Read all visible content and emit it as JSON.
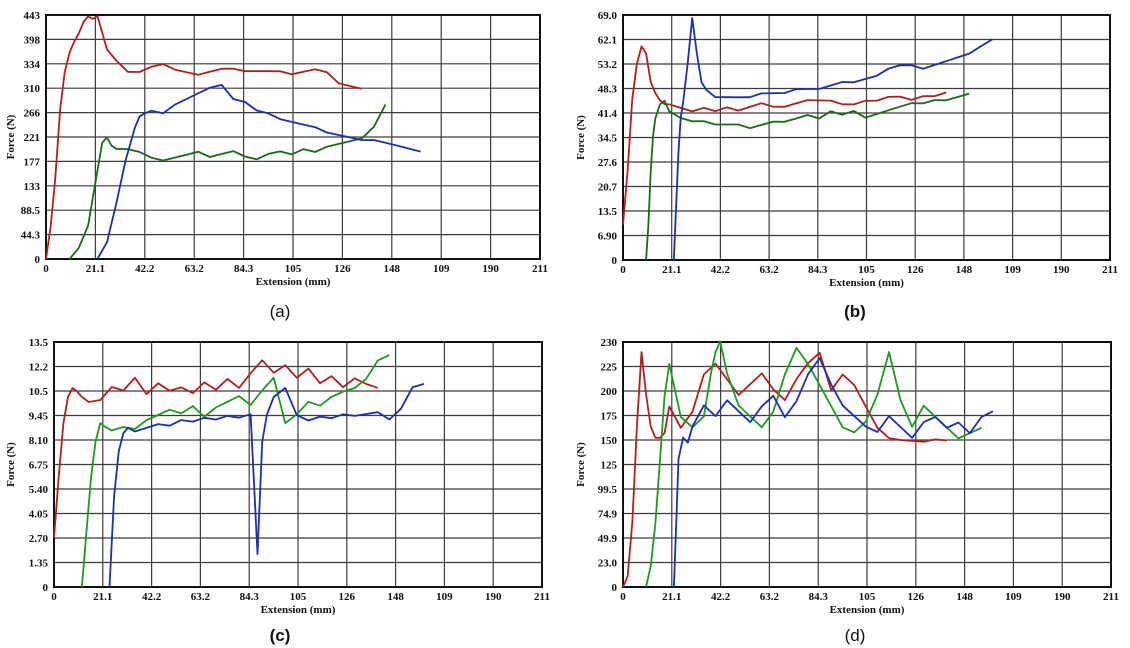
{
  "colors": {
    "red": "#b41e1e",
    "green": "#1a6a1a",
    "green_bright": "#1f9a1f",
    "blue": "#1c2fb0",
    "grid": "#3c3c3c"
  },
  "chart_data": [
    {
      "id": "a",
      "caption": "(a)",
      "caption_bold": false,
      "type": "line",
      "xlabel": "Extension (mm)",
      "ylabel": "Force (N)",
      "xticks": [
        "0",
        "21.1",
        "42.2",
        "63.2",
        "84.3",
        "105",
        "126",
        "148",
        "109",
        "190",
        "211"
      ],
      "yticks": [
        "0",
        "44.3",
        "88.5",
        "133",
        "177",
        "221",
        "266",
        "310",
        "334",
        "398",
        "443"
      ],
      "xlim": [
        0,
        211
      ],
      "ylim": [
        0,
        443
      ],
      "grid": true,
      "series": [
        {
          "color": "red",
          "x": [
            0,
            2,
            4,
            6,
            8,
            10,
            12,
            14,
            16,
            18,
            20,
            22,
            24,
            26,
            30,
            35,
            40,
            45,
            50,
            55,
            60,
            65,
            70,
            75,
            80,
            85,
            90,
            95,
            100,
            105,
            110,
            115,
            120,
            125,
            130,
            135
          ],
          "y": [
            0,
            60,
            150,
            270,
            340,
            375,
            395,
            410,
            430,
            440,
            435,
            440,
            410,
            380,
            360,
            340,
            340,
            350,
            355,
            345,
            340,
            335,
            340,
            345,
            345,
            340,
            340,
            340,
            340,
            335,
            340,
            345,
            340,
            320,
            315,
            310
          ]
        },
        {
          "color": "green",
          "x": [
            10,
            14,
            18,
            20,
            22,
            24,
            26,
            28,
            30,
            35,
            40,
            45,
            50,
            55,
            60,
            65,
            70,
            75,
            80,
            85,
            90,
            95,
            100,
            105,
            110,
            115,
            120,
            125,
            130,
            135,
            140,
            145
          ],
          "y": [
            0,
            20,
            60,
            110,
            160,
            210,
            220,
            205,
            200,
            200,
            195,
            185,
            180,
            185,
            190,
            195,
            185,
            190,
            195,
            185,
            180,
            190,
            195,
            190,
            200,
            195,
            205,
            210,
            215,
            220,
            240,
            280
          ]
        },
        {
          "color": "blue",
          "x": [
            22,
            26,
            30,
            34,
            38,
            40,
            42,
            45,
            50,
            55,
            60,
            65,
            70,
            75,
            78,
            80,
            85,
            90,
            95,
            100,
            105,
            110,
            115,
            120,
            125,
            130,
            135,
            140,
            145,
            150,
            155,
            160
          ],
          "y": [
            0,
            30,
            100,
            180,
            240,
            260,
            265,
            270,
            265,
            280,
            290,
            300,
            310,
            315,
            300,
            290,
            285,
            270,
            265,
            255,
            250,
            245,
            240,
            230,
            225,
            220,
            215,
            215,
            210,
            205,
            200,
            195
          ]
        }
      ]
    },
    {
      "id": "b",
      "caption": "(b)",
      "caption_bold": true,
      "type": "line",
      "xlabel": "Extension (mm)",
      "ylabel": "Force (N)",
      "xticks": [
        "0",
        "21.1",
        "42.2",
        "63.2",
        "84.3",
        "105",
        "126",
        "148",
        "109",
        "190",
        "211"
      ],
      "yticks": [
        "0",
        "6.90",
        "13.5",
        "20.7",
        "27.6",
        "34.5",
        "41.4",
        "48.3",
        "53.2",
        "62.1",
        "69.0"
      ],
      "xlim": [
        0,
        211
      ],
      "ylim": [
        0,
        69
      ],
      "grid": true,
      "series": [
        {
          "color": "red",
          "x": [
            0,
            2,
            4,
            6,
            8,
            10,
            12,
            14,
            16,
            18,
            20,
            25,
            30,
            35,
            40,
            45,
            50,
            55,
            60,
            65,
            70,
            75,
            80,
            85,
            90,
            95,
            100,
            105,
            110,
            115,
            120,
            125,
            130,
            135,
            140
          ],
          "y": [
            10,
            25,
            45,
            55,
            60,
            58,
            50,
            47,
            45,
            44,
            44,
            43,
            42,
            43,
            42,
            43,
            42,
            43,
            44,
            43,
            43,
            44,
            45,
            45,
            45,
            44,
            44,
            45,
            45,
            46,
            46,
            45,
            46,
            46,
            47
          ]
        },
        {
          "color": "green",
          "x": [
            10,
            11,
            12,
            13,
            14,
            16,
            18,
            20,
            25,
            30,
            35,
            40,
            45,
            50,
            55,
            60,
            65,
            70,
            75,
            80,
            85,
            90,
            95,
            100,
            105,
            110,
            115,
            120,
            125,
            130,
            135,
            140,
            145,
            150
          ],
          "y": [
            0,
            10,
            25,
            35,
            40,
            44,
            45,
            42,
            40,
            39,
            39,
            38,
            38,
            38,
            37,
            38,
            39,
            39,
            40,
            41,
            40,
            42,
            41,
            42,
            40,
            41,
            42,
            43,
            44,
            44,
            45,
            45,
            46,
            47
          ]
        },
        {
          "color": "blue",
          "x": [
            22,
            23,
            24,
            25,
            26,
            28,
            30,
            32,
            34,
            36,
            38,
            40,
            45,
            50,
            55,
            60,
            65,
            70,
            75,
            80,
            85,
            90,
            95,
            100,
            105,
            110,
            115,
            120,
            125,
            130,
            135,
            140,
            145,
            150,
            155,
            160
          ],
          "y": [
            0,
            15,
            30,
            40,
            44,
            55,
            68,
            58,
            50,
            48,
            47,
            46,
            46,
            46,
            46,
            47,
            47,
            47,
            48,
            48,
            48,
            49,
            50,
            50,
            51,
            52,
            54,
            55,
            55,
            54,
            55,
            56,
            57,
            58,
            60,
            62
          ]
        }
      ]
    },
    {
      "id": "c",
      "caption": "(c)",
      "caption_bold": true,
      "type": "line",
      "xlabel": "Extension (mm)",
      "ylabel": "Force (N)",
      "xticks": [
        "0",
        "21.1",
        "42.2",
        "63.2",
        "84.3",
        "105",
        "126",
        "148",
        "109",
        "190",
        "211"
      ],
      "yticks": [
        "0",
        "1.35",
        "2.70",
        "4.05",
        "5.40",
        "6.75",
        "8.10",
        "9.45",
        "10.5",
        "12.2",
        "13.5"
      ],
      "xlim": [
        0,
        211
      ],
      "ylim": [
        0,
        13.5
      ],
      "grid": true,
      "series": [
        {
          "color": "red",
          "x": [
            0,
            2,
            4,
            6,
            8,
            10,
            12,
            15,
            20,
            25,
            30,
            35,
            40,
            45,
            50,
            55,
            60,
            65,
            70,
            75,
            80,
            85,
            90,
            95,
            100,
            105,
            110,
            115,
            120,
            125,
            130,
            135,
            140
          ],
          "y": [
            2.7,
            6,
            9,
            10.5,
            11,
            10.8,
            10.5,
            10.2,
            10.3,
            11,
            10.8,
            11.5,
            10.6,
            11.2,
            10.8,
            11,
            10.7,
            11.3,
            10.9,
            11.5,
            11,
            11.8,
            12.5,
            11.8,
            12.2,
            11.5,
            12,
            11.2,
            11.6,
            11,
            11.5,
            11.2,
            11
          ]
        },
        {
          "color": "green",
          "x": [
            12,
            14,
            16,
            18,
            20,
            22,
            25,
            30,
            35,
            40,
            45,
            50,
            55,
            60,
            65,
            70,
            75,
            80,
            85,
            90,
            95,
            100,
            105,
            110,
            115,
            120,
            125,
            130,
            135,
            140,
            145
          ],
          "y": [
            0,
            3,
            6,
            8,
            9,
            8.8,
            8.6,
            8.8,
            8.7,
            9.2,
            9.5,
            9.8,
            9.6,
            10,
            9.4,
            9.9,
            10.2,
            10.5,
            10,
            10.8,
            11.5,
            9,
            9.5,
            10.2,
            10,
            10.5,
            10.8,
            11,
            11.5,
            12.5,
            12.8
          ]
        },
        {
          "color": "blue",
          "x": [
            24,
            26,
            28,
            30,
            32,
            35,
            40,
            45,
            50,
            55,
            60,
            65,
            70,
            75,
            80,
            85,
            88,
            90,
            92,
            95,
            100,
            105,
            110,
            115,
            120,
            125,
            130,
            135,
            140,
            145,
            150,
            155,
            160
          ],
          "y": [
            0,
            5,
            7.5,
            8.5,
            8.8,
            8.6,
            8.8,
            9,
            8.9,
            9.2,
            9.1,
            9.3,
            9.2,
            9.4,
            9.3,
            9.5,
            1.8,
            8,
            9.5,
            10.5,
            11,
            9.5,
            9.2,
            9.4,
            9.3,
            9.5,
            9.4,
            9.5,
            9.6,
            9.2,
            9.8,
            11,
            11.2
          ]
        }
      ]
    },
    {
      "id": "d",
      "caption": "(d)",
      "caption_bold": false,
      "type": "line",
      "xlabel": "Extension (mm)",
      "ylabel": "Force (N)",
      "xticks": [
        "0",
        "21.1",
        "42.2",
        "63.2",
        "84.3",
        "105",
        "126",
        "148",
        "109",
        "190",
        "211"
      ],
      "yticks": [
        "0",
        "23.0",
        "49.9",
        "74.9",
        "99.5",
        "125",
        "150",
        "175",
        "200",
        "225",
        "230"
      ],
      "xlim": [
        0,
        211
      ],
      "ylim": [
        0,
        230
      ],
      "grid": true,
      "series": [
        {
          "color": "red",
          "x": [
            0,
            2,
            4,
            6,
            8,
            10,
            12,
            14,
            16,
            18,
            20,
            25,
            30,
            35,
            40,
            45,
            50,
            55,
            60,
            65,
            70,
            75,
            80,
            85,
            90,
            95,
            100,
            105,
            110,
            115,
            120,
            125,
            130,
            135,
            140
          ],
          "y": [
            0,
            10,
            60,
            150,
            220,
            180,
            150,
            140,
            140,
            145,
            170,
            150,
            165,
            200,
            210,
            195,
            180,
            190,
            200,
            185,
            175,
            195,
            210,
            220,
            185,
            200,
            190,
            170,
            150,
            140,
            138,
            137,
            136,
            138,
            137
          ]
        },
        {
          "color": "green",
          "x": [
            10,
            12,
            14,
            16,
            18,
            20,
            22,
            25,
            30,
            35,
            38,
            40,
            42,
            45,
            50,
            55,
            60,
            65,
            70,
            75,
            80,
            85,
            90,
            95,
            100,
            105,
            110,
            115,
            120,
            125,
            130,
            135,
            140,
            145,
            150,
            155
          ],
          "y": [
            0,
            20,
            60,
            120,
            180,
            210,
            190,
            160,
            150,
            160,
            200,
            220,
            230,
            200,
            170,
            160,
            150,
            165,
            200,
            225,
            210,
            190,
            170,
            150,
            145,
            155,
            180,
            220,
            175,
            150,
            170,
            160,
            150,
            140,
            145,
            150
          ]
        },
        {
          "color": "blue",
          "x": [
            22,
            23,
            24,
            26,
            28,
            30,
            35,
            40,
            45,
            50,
            55,
            60,
            65,
            70,
            75,
            80,
            85,
            90,
            95,
            100,
            105,
            110,
            115,
            120,
            125,
            130,
            135,
            140,
            145,
            150,
            155,
            160
          ],
          "y": [
            0,
            60,
            120,
            140,
            135,
            150,
            170,
            160,
            175,
            165,
            155,
            170,
            180,
            160,
            175,
            200,
            215,
            190,
            170,
            160,
            150,
            145,
            160,
            150,
            140,
            155,
            160,
            150,
            155,
            145,
            160,
            165
          ]
        }
      ]
    }
  ]
}
